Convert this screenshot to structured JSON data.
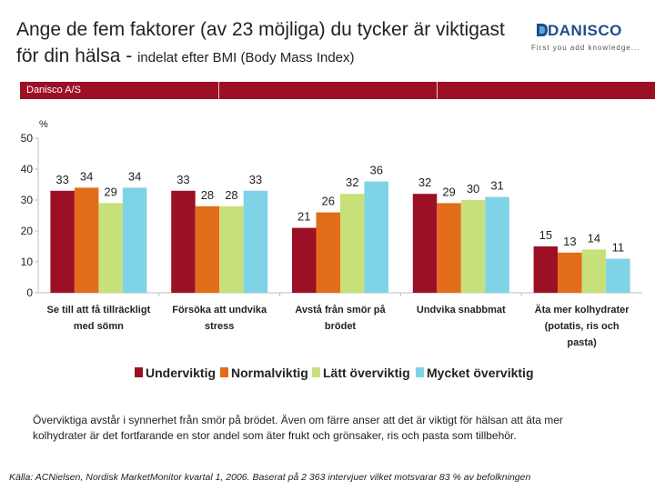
{
  "header": {
    "title_main": "Ange de fem faktorer (av 23 möjliga) du tycker är viktigast för din hälsa - ",
    "title_sub": "indelat efter BMI (Body Mass Index)"
  },
  "logo": {
    "name": "DANISCO",
    "tagline": "First you add knowledge..."
  },
  "band": {
    "label": "Danisco A/S"
  },
  "colors": {
    "band": "#9c1026",
    "Underviktig": "#9c1026",
    "Normalviktig": "#e36c1a",
    "Lätt överviktig": "#c8e07a",
    "Mycket överviktig": "#7fd3e6"
  },
  "chart_data": {
    "type": "bar",
    "unit_label": "%",
    "ylim": [
      0,
      50
    ],
    "yticks": [
      0,
      10,
      20,
      30,
      40,
      50
    ],
    "grid": false,
    "legend_position": "bottom",
    "categories": [
      [
        "Se till att få tillräckligt",
        "med sömn"
      ],
      [
        "Försöka att undvika",
        "stress"
      ],
      [
        "Avstå från smör på",
        "brödet"
      ],
      [
        "Undvika snabbmat"
      ],
      [
        "Äta mer kolhydrater",
        "(potatis, ris och",
        "pasta)"
      ]
    ],
    "series": [
      {
        "name": "Underviktig",
        "values": [
          33,
          33,
          21,
          32,
          15
        ]
      },
      {
        "name": "Normalviktig",
        "values": [
          34,
          28,
          26,
          29,
          13
        ]
      },
      {
        "name": "Lätt överviktig",
        "values": [
          29,
          28,
          32,
          30,
          14
        ]
      },
      {
        "name": "Mycket överviktig",
        "values": [
          34,
          33,
          36,
          31,
          11
        ]
      }
    ]
  },
  "body_text": "Överviktiga avstår i synnerhet från smör på brödet. Även om färre anser att det är viktigt för hälsan att äta mer kolhydrater är det fortfarande en stor andel som äter frukt och grönsaker, ris och pasta som tillbehör.",
  "source": "Källa: ACNielsen, Nordisk MarketMonitor kvartal 1, 2006. Baserat på 2 363  intervjuer vilket motsvarar 83 % av befolkningen"
}
